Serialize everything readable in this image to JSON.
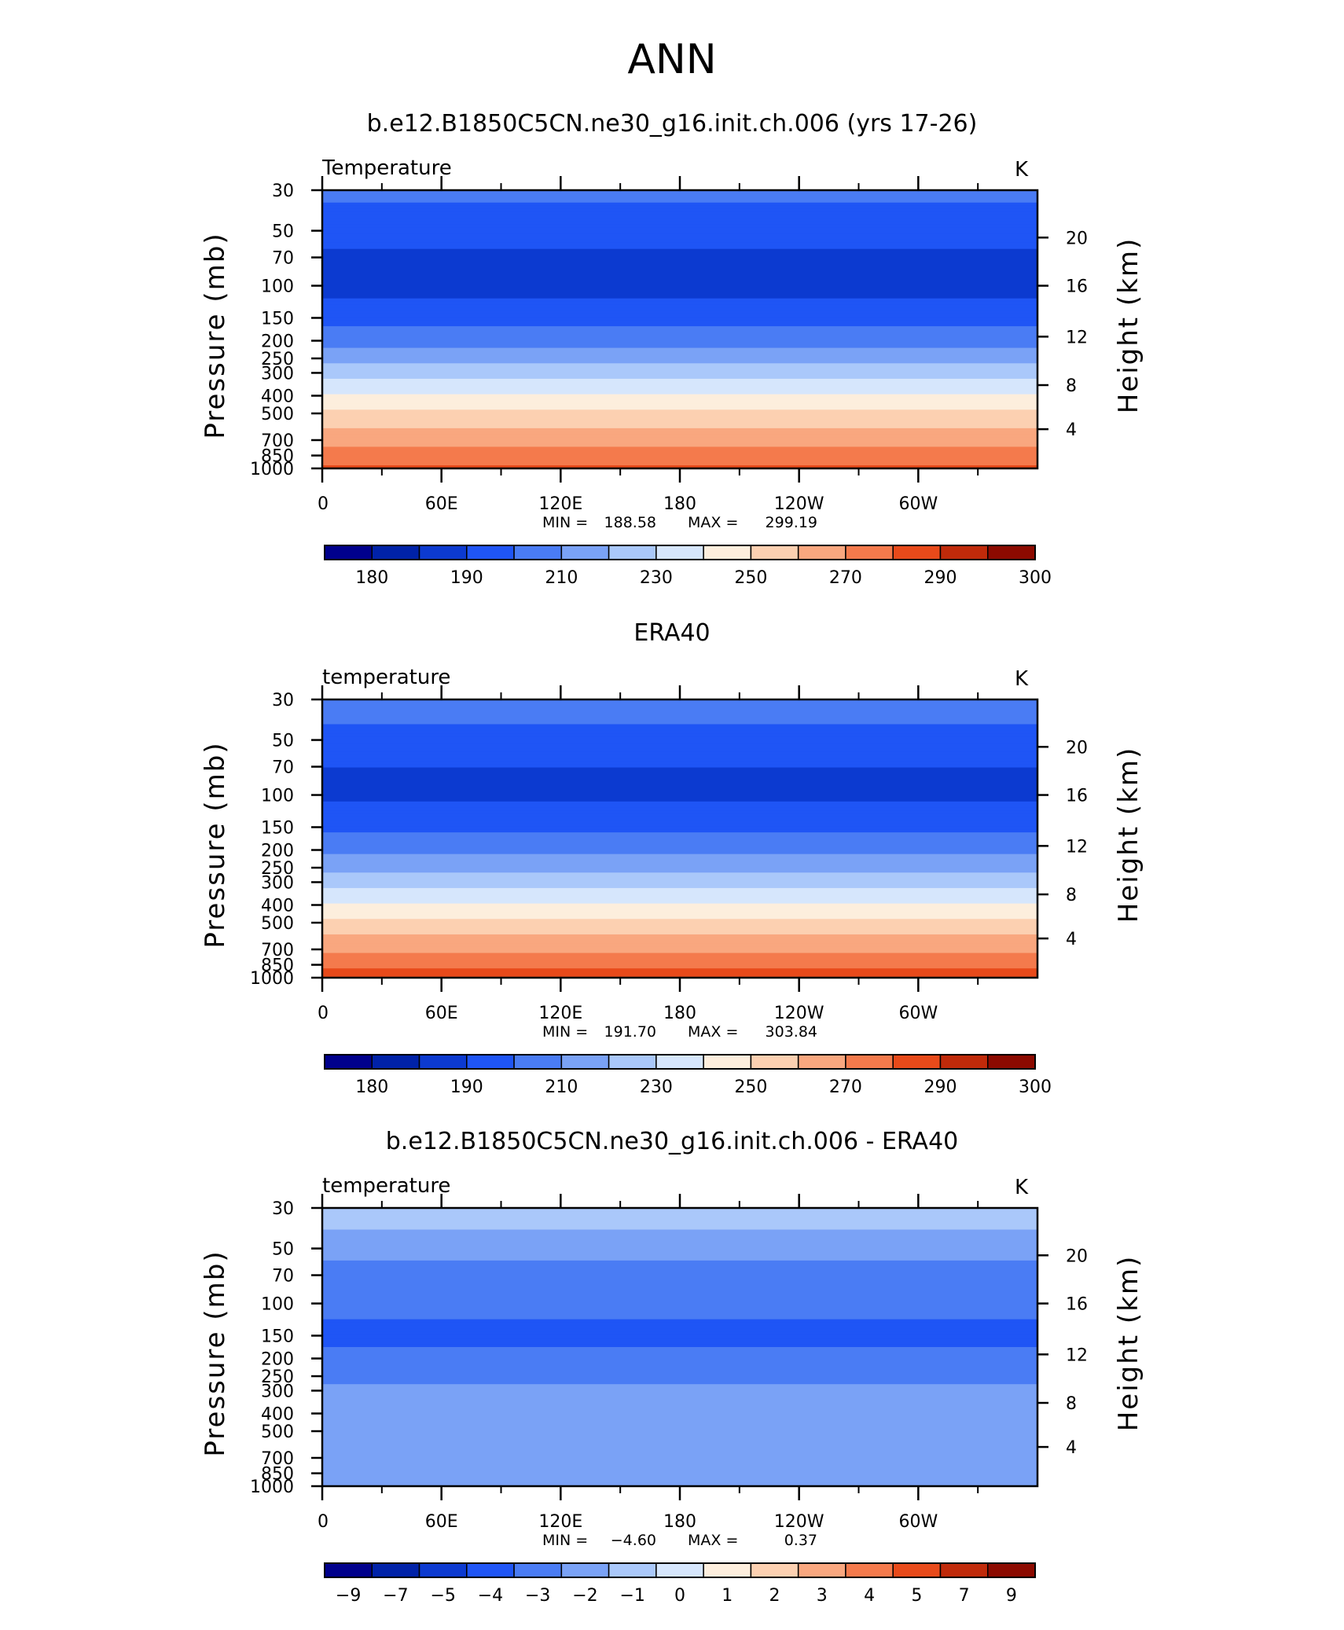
{
  "figure_title": "ANN",
  "yaxis": {
    "left_label": "Pressure  (mb)",
    "right_label": "Height  (km)",
    "pressure_ticks": [
      "30",
      "50",
      "70",
      "100",
      "150",
      "200",
      "250",
      "300",
      "400",
      "500",
      "700",
      "850",
      "1000"
    ],
    "height_ticks": [
      "20",
      "16",
      "12",
      "8",
      "4"
    ]
  },
  "xaxis": {
    "tick_labels": [
      "0",
      "60E",
      "120E",
      "180",
      "120W",
      "60W"
    ]
  },
  "panels": [
    {
      "title": "b.e12.B1850C5CN.ne30_g16.init.ch.006 (yrs 17-26)",
      "left_label": "Temperature",
      "units": "K",
      "min_label": "MIN =",
      "min_value": "188.58",
      "max_label": "MAX =",
      "max_value": "299.19",
      "colorbar_labels": [
        "180",
        "190",
        "210",
        "230",
        "250",
        "270",
        "290",
        "300"
      ]
    },
    {
      "title": "ERA40",
      "left_label": "temperature",
      "units": "K",
      "min_label": "MIN =",
      "min_value": "191.70",
      "max_label": "MAX =",
      "max_value": "303.84",
      "colorbar_labels": [
        "180",
        "190",
        "210",
        "230",
        "250",
        "270",
        "290",
        "300"
      ]
    },
    {
      "title": "b.e12.B1850C5CN.ne30_g16.init.ch.006 - ERA40",
      "left_label": "temperature",
      "units": "K",
      "min_label": "MIN =",
      "min_value": "−4.60",
      "max_label": "MAX =",
      "max_value": "0.37",
      "colorbar_labels": [
        "−9",
        "−7",
        "−5",
        "−4",
        "−3",
        "−2",
        "−1",
        "0",
        "1",
        "2",
        "3",
        "4",
        "5",
        "7",
        "9"
      ]
    }
  ],
  "colors": {
    "palette": [
      "#00008c",
      "#0022a8",
      "#0c3ad0",
      "#1f55f5",
      "#4a7cf4",
      "#7aa2f6",
      "#aac8fa",
      "#d6e6fc",
      "#fdeedd",
      "#fcd0b1",
      "#f9a77f",
      "#f47a4c",
      "#e84a1a",
      "#c02a0a",
      "#8c0a00"
    ]
  },
  "chart_data": [
    {
      "type": "heatmap",
      "title": "b.e12.B1850C5CN.ne30_g16.init.ch.006 (yrs 17-26)",
      "variable": "Temperature",
      "units": "K",
      "x_ticks": [
        "0",
        "60E",
        "120E",
        "180",
        "120W",
        "60W"
      ],
      "y_ticks_pressure_mb": [
        30,
        50,
        70,
        100,
        150,
        200,
        250,
        300,
        400,
        500,
        700,
        850,
        1000
      ],
      "y_ticks_height_km": [
        20,
        16,
        12,
        8,
        4
      ],
      "y_scale": "log",
      "contour_levels": [
        180,
        185,
        190,
        200,
        210,
        220,
        230,
        240,
        250,
        260,
        270,
        280,
        290,
        295,
        300
      ],
      "level_colorbar_labels": [
        "180",
        "190",
        "210",
        "230",
        "250",
        "270",
        "290",
        "300"
      ],
      "profile": [
        {
          "pressure": 30,
          "value": 212
        },
        {
          "pressure": 50,
          "value": 205
        },
        {
          "pressure": 70,
          "value": 198
        },
        {
          "pressure": 100,
          "value": 196
        },
        {
          "pressure": 150,
          "value": 206
        },
        {
          "pressure": 200,
          "value": 217
        },
        {
          "pressure": 250,
          "value": 226
        },
        {
          "pressure": 300,
          "value": 236
        },
        {
          "pressure": 400,
          "value": 250
        },
        {
          "pressure": 500,
          "value": 262
        },
        {
          "pressure": 700,
          "value": 277
        },
        {
          "pressure": 850,
          "value": 285
        },
        {
          "pressure": 1000,
          "value": 292
        }
      ],
      "min": 188.58,
      "max": 299.19
    },
    {
      "type": "heatmap",
      "title": "ERA40",
      "variable": "temperature",
      "units": "K",
      "x_ticks": [
        "0",
        "60E",
        "120E",
        "180",
        "120W",
        "60W"
      ],
      "y_ticks_pressure_mb": [
        30,
        50,
        70,
        100,
        150,
        200,
        250,
        300,
        400,
        500,
        700,
        850,
        1000
      ],
      "y_ticks_height_km": [
        20,
        16,
        12,
        8,
        4
      ],
      "y_scale": "log",
      "contour_levels": [
        180,
        185,
        190,
        200,
        210,
        220,
        230,
        240,
        250,
        260,
        270,
        280,
        290,
        295,
        300
      ],
      "level_colorbar_labels": [
        "180",
        "190",
        "210",
        "230",
        "250",
        "270",
        "290",
        "300"
      ],
      "profile": [
        {
          "pressure": 30,
          "value": 215
        },
        {
          "pressure": 50,
          "value": 207
        },
        {
          "pressure": 70,
          "value": 200
        },
        {
          "pressure": 100,
          "value": 198
        },
        {
          "pressure": 150,
          "value": 207
        },
        {
          "pressure": 200,
          "value": 218
        },
        {
          "pressure": 250,
          "value": 227
        },
        {
          "pressure": 300,
          "value": 237
        },
        {
          "pressure": 400,
          "value": 251
        },
        {
          "pressure": 500,
          "value": 263
        },
        {
          "pressure": 700,
          "value": 278
        },
        {
          "pressure": 850,
          "value": 287
        },
        {
          "pressure": 1000,
          "value": 295
        }
      ],
      "min": 191.7,
      "max": 303.84
    },
    {
      "type": "heatmap",
      "title": "b.e12.B1850C5CN.ne30_g16.init.ch.006 - ERA40",
      "variable": "temperature",
      "units": "K",
      "x_ticks": [
        "0",
        "60E",
        "120E",
        "180",
        "120W",
        "60W"
      ],
      "y_ticks_pressure_mb": [
        30,
        50,
        70,
        100,
        150,
        200,
        250,
        300,
        400,
        500,
        700,
        850,
        1000
      ],
      "y_ticks_height_km": [
        20,
        16,
        12,
        8,
        4
      ],
      "y_scale": "log",
      "contour_levels": [
        -9,
        -7,
        -5,
        -4,
        -3,
        -2,
        -1,
        0,
        1,
        2,
        3,
        4,
        5,
        7,
        9
      ],
      "level_colorbar_labels": [
        "−9",
        "−7",
        "−5",
        "−4",
        "−3",
        "−2",
        "−1",
        "0",
        "1",
        "2",
        "3",
        "4",
        "5",
        "7",
        "9"
      ],
      "profile": [
        {
          "pressure": 30,
          "value": -0.5
        },
        {
          "pressure": 50,
          "value": -1.5
        },
        {
          "pressure": 70,
          "value": -2.5
        },
        {
          "pressure": 100,
          "value": -2.5
        },
        {
          "pressure": 150,
          "value": -3.5
        },
        {
          "pressure": 200,
          "value": -2.5
        },
        {
          "pressure": 250,
          "value": -2.5
        },
        {
          "pressure": 300,
          "value": -1.5
        },
        {
          "pressure": 400,
          "value": -1.5
        },
        {
          "pressure": 500,
          "value": -1.5
        },
        {
          "pressure": 700,
          "value": -1.5
        },
        {
          "pressure": 850,
          "value": -1.5
        },
        {
          "pressure": 1000,
          "value": -1.5
        }
      ],
      "min": -4.6,
      "max": 0.37
    }
  ]
}
